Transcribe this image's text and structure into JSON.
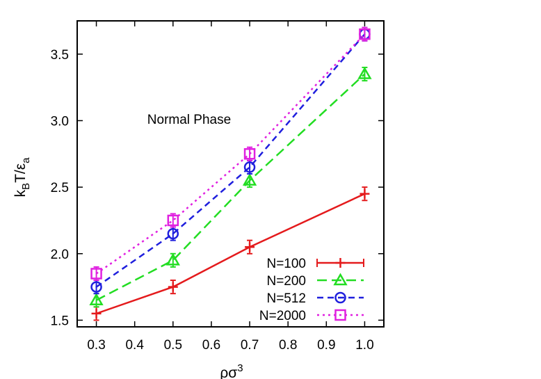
{
  "chart_data": {
    "type": "line",
    "xlabel_base": "ρσ",
    "xlabel_sup": "3",
    "ylabel_k": "k",
    "ylabel_k_sub": "B",
    "ylabel_mid": "T/ε",
    "ylabel_eps_sub": "a",
    "annotation": "Normal Phase",
    "xlim": [
      0.25,
      1.05
    ],
    "ylim": [
      1.45,
      3.75
    ],
    "x_ticks": [
      0.3,
      0.4,
      0.5,
      0.6,
      0.7,
      0.8,
      0.9,
      1.0
    ],
    "x_tick_labels": [
      "0.3",
      "0.4",
      "0.5",
      "0.6",
      "0.7",
      "0.8",
      "0.9",
      "1.0"
    ],
    "y_ticks": [
      1.5,
      2.0,
      2.5,
      3.0,
      3.5
    ],
    "y_tick_labels": [
      "1.5",
      "2.0",
      "2.5",
      "3.0",
      "3.5"
    ],
    "legend_position": "bottom-right",
    "grid": false,
    "series": [
      {
        "name": "N=100",
        "color": "#e41a1c",
        "marker": "plus",
        "dash": "solid",
        "x": [
          0.3,
          0.5,
          0.7,
          1.0
        ],
        "y": [
          1.55,
          1.75,
          2.05,
          2.45
        ],
        "err": [
          0.05,
          0.05,
          0.05,
          0.05
        ]
      },
      {
        "name": "N=200",
        "color": "#22dd22",
        "marker": "triangle",
        "dash": "long",
        "x": [
          0.3,
          0.5,
          0.7,
          1.0
        ],
        "y": [
          1.65,
          1.95,
          2.55,
          3.35
        ],
        "err": [
          0.05,
          0.05,
          0.05,
          0.05
        ]
      },
      {
        "name": "N=512",
        "color": "#1f1fdd",
        "marker": "circle",
        "dash": "short",
        "x": [
          0.3,
          0.5,
          0.7,
          1.0
        ],
        "y": [
          1.75,
          2.15,
          2.65,
          3.65
        ],
        "err": [
          0.05,
          0.05,
          0.05,
          0.05
        ]
      },
      {
        "name": "N=2000",
        "color": "#e020e0",
        "marker": "square",
        "dash": "dotted",
        "x": [
          0.3,
          0.5,
          0.7,
          1.0
        ],
        "y": [
          1.85,
          2.25,
          2.75,
          3.65
        ],
        "err": [
          0.05,
          0.05,
          0.05,
          0.05
        ]
      }
    ]
  }
}
